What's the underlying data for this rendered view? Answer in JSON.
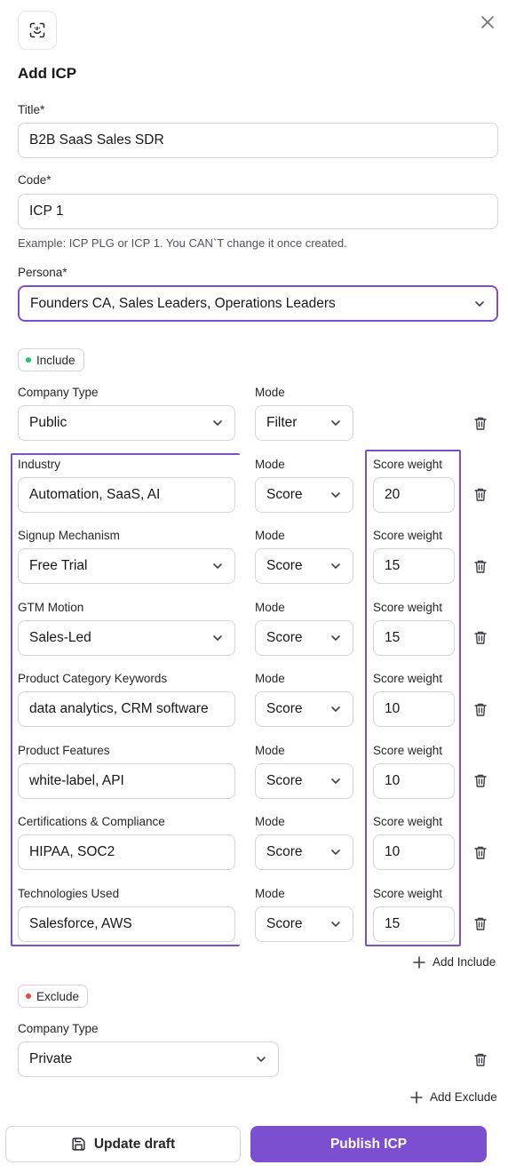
{
  "modal": {
    "title": "Add ICP",
    "logo_icon": "face-scan-icon",
    "close_icon": "close-icon"
  },
  "form": {
    "title_label": "Title*",
    "title_value": "B2B SaaS Sales SDR",
    "code_label": "Code*",
    "code_value": "ICP 1",
    "code_hint": "Example: ICP PLG or ICP 1. You CAN`T change it once created.",
    "persona_label": "Persona*",
    "persona_value": "Founders CA, Sales Leaders, Operations Leaders"
  },
  "include": {
    "badge_label": "Include",
    "badge_color": "#22c55e",
    "rows": [
      {
        "label": "Company Type",
        "value": "Public",
        "type": "select",
        "mode_label": "Mode",
        "mode": "Filter"
      },
      {
        "label": "Industry",
        "value": "Automation, SaaS, AI",
        "type": "input",
        "mode_label": "Mode",
        "mode": "Score",
        "weight_label": "Score weight",
        "weight": "20"
      },
      {
        "label": "Signup Mechanism",
        "value": "Free Trial",
        "type": "select",
        "mode_label": "Mode",
        "mode": "Score",
        "weight_label": "Score weight",
        "weight": "15"
      },
      {
        "label": "GTM Motion",
        "value": "Sales-Led",
        "type": "select",
        "mode_label": "Mode",
        "mode": "Score",
        "weight_label": "Score weight",
        "weight": "15"
      },
      {
        "label": "Product Category Keywords",
        "value": "data analytics, CRM software",
        "type": "input",
        "mode_label": "Mode",
        "mode": "Score",
        "weight_label": "Score weight",
        "weight": "10"
      },
      {
        "label": "Product Features",
        "value": "white-label, API",
        "type": "input",
        "mode_label": "Mode",
        "mode": "Score",
        "weight_label": "Score weight",
        "weight": "10"
      },
      {
        "label": "Certifications & Compliance",
        "value": "HIPAA, SOC2",
        "type": "input",
        "mode_label": "Mode",
        "mode": "Score",
        "weight_label": "Score weight",
        "weight": "10"
      },
      {
        "label": "Technologies Used",
        "value": "Salesforce, AWS",
        "type": "input",
        "mode_label": "Mode",
        "mode": "Score",
        "weight_label": "Score weight",
        "weight": "15"
      }
    ],
    "add_label": "Add Include"
  },
  "exclude": {
    "badge_label": "Exclude",
    "badge_color": "#ef4444",
    "rows": [
      {
        "label": "Company Type",
        "value": "Private",
        "type": "select"
      }
    ],
    "add_label": "Add Exclude"
  },
  "footer": {
    "update_label": "Update draft",
    "update_icon": "save-icon",
    "publish_label": "Publish ICP"
  },
  "colors": {
    "accent": "#7c4fd0",
    "border": "#d4d4d8"
  }
}
